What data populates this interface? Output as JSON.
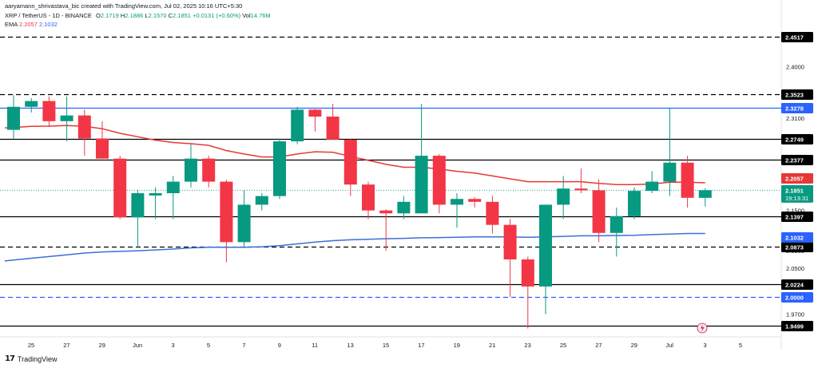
{
  "header": {
    "credit": "aaryamann_shrivastava_bic created with TradingView.com, Jul 02, 2025 10:16 UTC+5:30",
    "symbol": "XRP / TetherUS - 1D - BINANCE",
    "o_label": "O",
    "o_val": "2.1719",
    "h_label": "H",
    "h_val": "2.1886",
    "l_label": "L",
    "l_val": "2.1570",
    "c_label": "C",
    "c_val": "2.1851",
    "change": "+0.0131 (+0.60%)",
    "vol_label": "Vol",
    "vol_val": "14.76M",
    "ema_label": "EMA",
    "ema_val_red": "2.2057",
    "ema_val_blue": "2.1032"
  },
  "footer": {
    "brand": "TradingView"
  },
  "colors": {
    "up": "#089981",
    "down": "#f23645",
    "ema_red": "#e53935",
    "ema_blue": "#3a6fd8",
    "hline": "#000000",
    "resist_blue": "#2962ff",
    "grid": "#f0f3fa"
  },
  "chart_data": {
    "type": "candlestick",
    "y_axis": {
      "range": [
        1.94,
        2.47
      ],
      "tick_labels": [
        "2.4000",
        "2.3100",
        "2.1500",
        "2.0800",
        "2.0500",
        "1.9700"
      ],
      "tick_values": [
        2.4,
        2.31,
        2.15,
        2.08,
        2.05,
        1.97
      ]
    },
    "x_axis": {
      "tick_labels": [
        "25",
        "27",
        "29",
        "Jun",
        "3",
        "5",
        "7",
        "9",
        "11",
        "13",
        "15",
        "17",
        "19",
        "21",
        "23",
        "25",
        "27",
        "29",
        "Jul",
        "3",
        "5"
      ]
    },
    "candles": [
      {
        "o": 2.29,
        "h": 2.35,
        "l": 2.275,
        "c": 2.33
      },
      {
        "o": 2.33,
        "h": 2.345,
        "l": 2.32,
        "c": 2.34
      },
      {
        "o": 2.34,
        "h": 2.348,
        "l": 2.295,
        "c": 2.305
      },
      {
        "o": 2.305,
        "h": 2.348,
        "l": 2.27,
        "c": 2.315
      },
      {
        "o": 2.315,
        "h": 2.325,
        "l": 2.245,
        "c": 2.275
      },
      {
        "o": 2.275,
        "h": 2.305,
        "l": 2.24,
        "c": 2.24
      },
      {
        "o": 2.24,
        "h": 2.245,
        "l": 2.135,
        "c": 2.138
      },
      {
        "o": 2.138,
        "h": 2.185,
        "l": 2.085,
        "c": 2.18
      },
      {
        "o": 2.176,
        "h": 2.19,
        "l": 2.135,
        "c": 2.18
      },
      {
        "o": 2.18,
        "h": 2.21,
        "l": 2.135,
        "c": 2.2
      },
      {
        "o": 2.2,
        "h": 2.265,
        "l": 2.19,
        "c": 2.24
      },
      {
        "o": 2.24,
        "h": 2.245,
        "l": 2.19,
        "c": 2.2
      },
      {
        "o": 2.2,
        "h": 2.203,
        "l": 2.06,
        "c": 2.095
      },
      {
        "o": 2.095,
        "h": 2.185,
        "l": 2.085,
        "c": 2.16
      },
      {
        "o": 2.16,
        "h": 2.18,
        "l": 2.15,
        "c": 2.175
      },
      {
        "o": 2.175,
        "h": 2.275,
        "l": 2.17,
        "c": 2.27
      },
      {
        "o": 2.27,
        "h": 2.33,
        "l": 2.265,
        "c": 2.325
      },
      {
        "o": 2.325,
        "h": 2.326,
        "l": 2.287,
        "c": 2.313
      },
      {
        "o": 2.313,
        "h": 2.335,
        "l": 2.275,
        "c": 2.273
      },
      {
        "o": 2.273,
        "h": 2.275,
        "l": 2.175,
        "c": 2.195
      },
      {
        "o": 2.195,
        "h": 2.2,
        "l": 2.135,
        "c": 2.15
      },
      {
        "o": 2.15,
        "h": 2.152,
        "l": 2.08,
        "c": 2.145
      },
      {
        "o": 2.145,
        "h": 2.175,
        "l": 2.135,
        "c": 2.165
      },
      {
        "o": 2.145,
        "h": 2.335,
        "l": 2.145,
        "c": 2.245
      },
      {
        "o": 2.245,
        "h": 2.248,
        "l": 2.145,
        "c": 2.16
      },
      {
        "o": 2.16,
        "h": 2.18,
        "l": 2.12,
        "c": 2.17
      },
      {
        "o": 2.17,
        "h": 2.173,
        "l": 2.155,
        "c": 2.165
      },
      {
        "o": 2.165,
        "h": 2.175,
        "l": 2.11,
        "c": 2.125
      },
      {
        "o": 2.125,
        "h": 2.135,
        "l": 2.0,
        "c": 2.065
      },
      {
        "o": 2.065,
        "h": 2.07,
        "l": 1.945,
        "c": 2.018
      },
      {
        "o": 2.018,
        "h": 2.16,
        "l": 1.97,
        "c": 2.16
      },
      {
        "o": 2.16,
        "h": 2.21,
        "l": 2.135,
        "c": 2.188
      },
      {
        "o": 2.188,
        "h": 2.223,
        "l": 2.18,
        "c": 2.185
      },
      {
        "o": 2.185,
        "h": 2.204,
        "l": 2.095,
        "c": 2.111
      },
      {
        "o": 2.111,
        "h": 2.155,
        "l": 2.07,
        "c": 2.14
      },
      {
        "o": 2.14,
        "h": 2.19,
        "l": 2.135,
        "c": 2.184
      },
      {
        "o": 2.184,
        "h": 2.218,
        "l": 2.18,
        "c": 2.2
      },
      {
        "o": 2.2,
        "h": 2.327,
        "l": 2.175,
        "c": 2.233
      },
      {
        "o": 2.233,
        "h": 2.245,
        "l": 2.155,
        "c": 2.172
      },
      {
        "o": 2.1719,
        "h": 2.1886,
        "l": 2.157,
        "c": 2.1851
      }
    ],
    "series": [
      {
        "name": "EMA 2.2057",
        "color": "#e53935",
        "values": [
          2.294,
          2.296,
          2.2965,
          2.2975,
          2.296,
          2.292,
          2.284,
          2.278,
          2.272,
          2.268,
          2.266,
          2.263,
          2.254,
          2.248,
          2.243,
          2.243,
          2.248,
          2.252,
          2.251,
          2.244,
          2.237,
          2.23,
          2.225,
          2.225,
          2.222,
          2.218,
          2.215,
          2.21,
          2.205,
          2.2,
          2.2,
          2.2,
          2.2,
          2.197,
          2.195,
          2.195,
          2.196,
          2.199,
          2.199,
          2.198
        ]
      },
      {
        "name": "EMA 2.1032",
        "color": "#3a6fd8",
        "values": [
          2.064,
          2.067,
          2.07,
          2.073,
          2.076,
          2.078,
          2.079,
          2.08,
          2.0815,
          2.083,
          2.085,
          2.086,
          2.086,
          2.086,
          2.087,
          2.089,
          2.092,
          2.095,
          2.0975,
          2.099,
          2.1,
          2.101,
          2.1015,
          2.1025,
          2.103,
          2.1035,
          2.104,
          2.104,
          2.104,
          2.1035,
          2.104,
          2.105,
          2.106,
          2.106,
          2.1065,
          2.107,
          2.108,
          2.109,
          2.11,
          2.11
        ]
      }
    ],
    "horizontal_levels": [
      {
        "value": 2.4517,
        "label": "2.4517",
        "style": "dashed",
        "color": "#000000"
      },
      {
        "value": 2.3523,
        "label": "2.3523",
        "style": "dashed",
        "color": "#000000"
      },
      {
        "value": 2.3278,
        "label": "2.3278",
        "style": "solid",
        "color": "#2962ff"
      },
      {
        "value": 2.2749,
        "label": "2.2749",
        "style": "solid",
        "color": "#000000"
      },
      {
        "value": 2.2377,
        "label": "2.2377",
        "style": "solid",
        "color": "#000000"
      },
      {
        "value": 2.1397,
        "label": "2.1397",
        "style": "solid",
        "color": "#000000"
      },
      {
        "value": 2.0873,
        "label": "2.0873",
        "style": "dashed",
        "color": "#000000"
      },
      {
        "value": 2.0224,
        "label": "2.0224",
        "style": "solid",
        "color": "#000000"
      },
      {
        "value": 2.0,
        "label": "2.0000",
        "style": "dashed",
        "color": "#2962ff"
      },
      {
        "value": 1.9499,
        "label": "1.9499",
        "style": "solid",
        "color": "#000000"
      }
    ],
    "price_tags": [
      {
        "value": 2.2057,
        "label": "2.2057",
        "color": "#e53935"
      },
      {
        "value": 2.1851,
        "label": "2.1851",
        "sublabel": "19:13:31",
        "color": "#089981"
      },
      {
        "value": 2.1032,
        "label": "2.1032",
        "color": "#2962ff"
      }
    ]
  }
}
